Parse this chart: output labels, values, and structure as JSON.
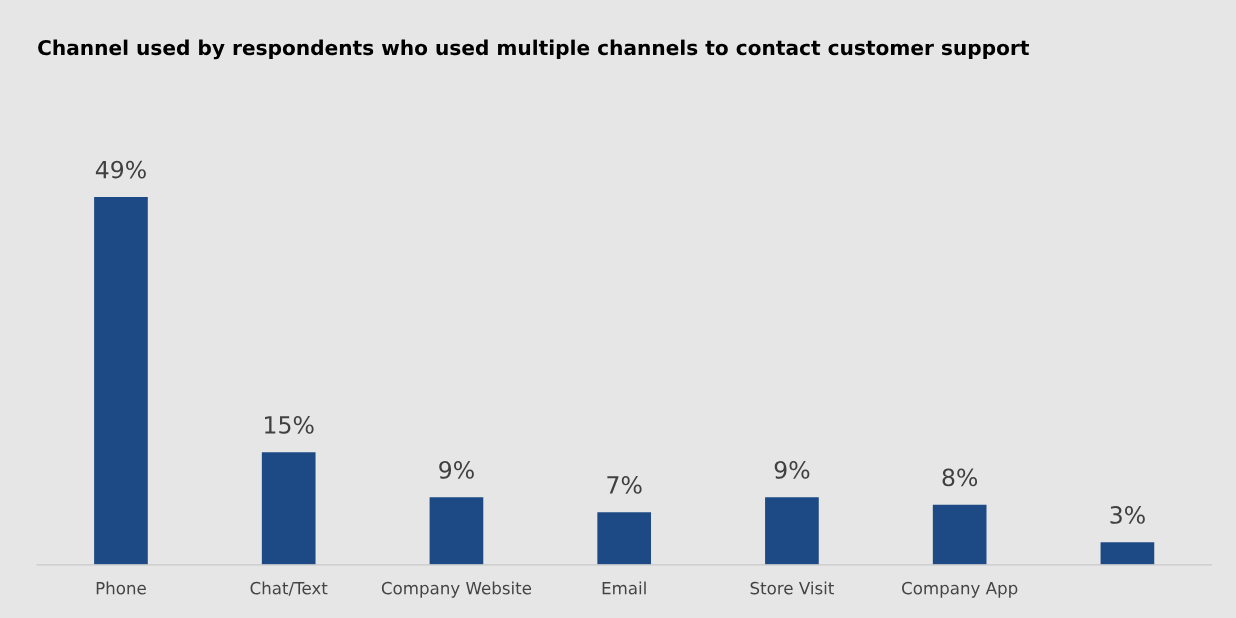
{
  "chart_data": {
    "type": "bar",
    "title": "Channel used by respondents who used multiple channels to contact customer support",
    "categories": [
      "Phone",
      "Chat/Text",
      "Company Website",
      "Email",
      "Store Visit",
      "Company App",
      null
    ],
    "values": [
      49,
      15,
      9,
      7,
      9,
      8,
      3
    ],
    "value_labels": [
      "49%",
      "15%",
      "9%",
      "7%",
      "9%",
      "8%",
      "3%"
    ],
    "color": "#1d4a85",
    "grid": false,
    "legend": false,
    "tick_labels": "x"
  }
}
